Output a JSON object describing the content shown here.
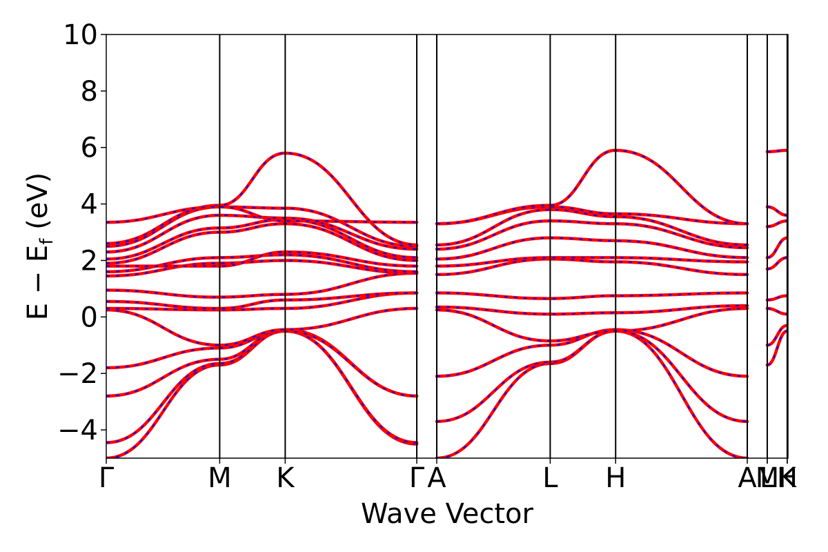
{
  "chart_data": {
    "type": "line",
    "title": "",
    "xlabel": "Wave Vector",
    "ylabel": {
      "main": "E − E",
      "sub": "f",
      "unit": " (eV)"
    },
    "ylim": [
      -5,
      10
    ],
    "yticks": [
      "−4",
      "−2",
      "0",
      "2",
      "4",
      "6",
      "8",
      "10"
    ],
    "ytick_values": [
      -4,
      -2,
      0,
      2,
      4,
      6,
      8,
      10
    ],
    "xlim": [
      0,
      1
    ],
    "high_symmetry_points": [
      {
        "label": "Γ",
        "x": 0.0
      },
      {
        "label": "M",
        "x": 0.1664
      },
      {
        "label": "K",
        "x": 0.2625
      },
      {
        "label": "Γ",
        "x": 0.4555
      },
      {
        "label": "A",
        "x": 0.4848
      },
      {
        "label": "L",
        "x": 0.6512
      },
      {
        "label": "H",
        "x": 0.7472
      },
      {
        "label": "A",
        "x": 0.9403
      },
      {
        "label": "M",
        "x": 0.9696
      },
      {
        "label": "L",
        "x": 0.9696
      },
      {
        "label": "K",
        "x": 0.9989
      },
      {
        "label": "H",
        "x": 0.9989
      }
    ],
    "colors": {
      "band": "#ff0000",
      "overlay": "#0000ff",
      "vline": "#000000"
    },
    "segments": [
      {
        "name": "Γ-M-K-Γ",
        "x": [
          0,
          0.1664,
          0.2625,
          0.4555
        ],
        "bands": [
          [
            -5.0,
            -1.7,
            -0.5,
            -4.5
          ],
          [
            -4.45,
            -1.65,
            -0.5,
            -4.45
          ],
          [
            -2.8,
            -1.5,
            -0.45,
            -2.8
          ],
          [
            -1.8,
            -1.1,
            -0.5,
            -2.8
          ],
          [
            0.25,
            -1.0,
            -0.45,
            0.3
          ],
          [
            0.3,
            0.25,
            0.3,
            0.85
          ],
          [
            0.55,
            0.3,
            0.6,
            0.85
          ],
          [
            0.95,
            0.7,
            0.8,
            1.55
          ],
          [
            1.45,
            1.9,
            2.0,
            1.55
          ],
          [
            1.6,
            2.1,
            2.2,
            1.6
          ],
          [
            1.8,
            1.8,
            2.3,
            1.8
          ],
          [
            1.9,
            3.0,
            3.3,
            2.0
          ],
          [
            2.05,
            3.15,
            3.45,
            2.1
          ],
          [
            2.3,
            3.6,
            3.5,
            2.4
          ],
          [
            2.5,
            3.9,
            3.85,
            2.5
          ],
          [
            2.6,
            3.95,
            5.8,
            2.55
          ],
          [
            3.35,
            3.9,
            3.4,
            3.35
          ]
        ]
      },
      {
        "name": "A-L-H-A",
        "x": [
          0.4848,
          0.6512,
          0.7472,
          0.9403
        ],
        "bands": [
          [
            -5.0,
            -1.65,
            -0.5,
            -5.0
          ],
          [
            -3.7,
            -1.6,
            -0.5,
            -3.7
          ],
          [
            -2.1,
            -1.0,
            -0.45,
            -2.1
          ],
          [
            0.25,
            -0.85,
            -0.5,
            0.3
          ],
          [
            0.35,
            0.1,
            0.15,
            0.4
          ],
          [
            0.85,
            0.65,
            0.75,
            0.85
          ],
          [
            1.5,
            2.05,
            1.95,
            1.5
          ],
          [
            1.8,
            2.1,
            2.1,
            1.95
          ],
          [
            2.05,
            2.8,
            2.7,
            2.1
          ],
          [
            2.4,
            3.4,
            3.3,
            2.45
          ],
          [
            2.55,
            3.8,
            3.55,
            2.55
          ],
          [
            3.3,
            3.9,
            3.65,
            3.3
          ],
          [
            3.3,
            3.95,
            5.9,
            3.3
          ]
        ]
      },
      {
        "name": "M-K",
        "x": [
          0.9696,
          0.9989
        ],
        "bands": [
          [
            -1.7,
            -0.5
          ],
          [
            -1.0,
            -0.3
          ],
          [
            0.3,
            0.1
          ],
          [
            0.6,
            0.75
          ],
          [
            1.7,
            2.1
          ],
          [
            2.1,
            2.8
          ],
          [
            3.2,
            3.4
          ],
          [
            3.9,
            3.6
          ],
          [
            5.85,
            5.9
          ]
        ]
      }
    ]
  }
}
